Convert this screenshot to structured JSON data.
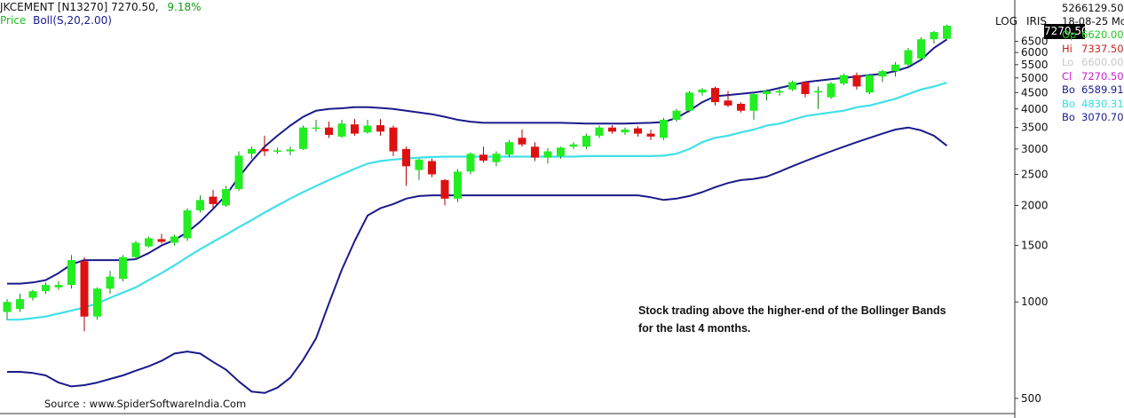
{
  "header": {
    "symbol": "JKCEMENT [N13270]",
    "last": "7270.50,",
    "change": "9.18%",
    "indicator_prefix": "Price",
    "indicator": "Boll(S,20,2.00)"
  },
  "toolbar": {
    "log_label": "LOG",
    "iris_label": "IRIS"
  },
  "info": {
    "volume": "5266129.50",
    "date": "18-08-25 Mo",
    "price_box": "7270.50",
    "rows": [
      {
        "key": "Op",
        "value": "6620.00",
        "color": "#22cc22"
      },
      {
        "key": "Hi",
        "value": "7337.50",
        "color": "#cc2222"
      },
      {
        "key": "Lo",
        "value": "6600.00",
        "color": "#c8c8c8"
      },
      {
        "key": "Cl",
        "value": "7270.50",
        "color": "#cc22cc"
      },
      {
        "key": "Bo",
        "value": "6589.91",
        "color": "#1a1a8c"
      },
      {
        "key": "Bo",
        "value": "4830.31",
        "color": "#33dddd"
      },
      {
        "key": "Bo",
        "value": "3070.70",
        "color": "#1a1a8c"
      }
    ]
  },
  "annotation": {
    "line1": "Stock trading above the higher-end of the Bollinger Bands",
    "line2": "for the last 4 months."
  },
  "source": "Source : www.SpiderSoftwareIndia.Com",
  "chart_data": {
    "type": "candlestick",
    "y_scale": "log",
    "ylim": [
      460,
      7800
    ],
    "y_ticks": [
      500,
      1000,
      1500,
      2000,
      2500,
      3000,
      3500,
      4000,
      4500,
      5000,
      5500,
      6000,
      6500
    ],
    "colors": {
      "up": "#22ee22",
      "down": "#dd1111",
      "upper_band": "#1a1a8c",
      "middle_band": "#40e0e8",
      "lower_band": "#1a1a8c"
    },
    "candles": [
      {
        "o": 930,
        "h": 1020,
        "l": 880,
        "c": 1000
      },
      {
        "o": 950,
        "h": 1060,
        "l": 930,
        "c": 1020
      },
      {
        "o": 1030,
        "h": 1090,
        "l": 1010,
        "c": 1080
      },
      {
        "o": 1080,
        "h": 1150,
        "l": 1060,
        "c": 1130
      },
      {
        "o": 1110,
        "h": 1160,
        "l": 1090,
        "c": 1130
      },
      {
        "o": 1130,
        "h": 1400,
        "l": 1100,
        "c": 1350
      },
      {
        "o": 1340,
        "h": 1380,
        "l": 810,
        "c": 900
      },
      {
        "o": 900,
        "h": 1110,
        "l": 880,
        "c": 1100
      },
      {
        "o": 1100,
        "h": 1250,
        "l": 1060,
        "c": 1200
      },
      {
        "o": 1180,
        "h": 1400,
        "l": 1160,
        "c": 1380
      },
      {
        "o": 1380,
        "h": 1550,
        "l": 1350,
        "c": 1530
      },
      {
        "o": 1490,
        "h": 1600,
        "l": 1480,
        "c": 1580
      },
      {
        "o": 1570,
        "h": 1630,
        "l": 1520,
        "c": 1540
      },
      {
        "o": 1530,
        "h": 1620,
        "l": 1500,
        "c": 1600
      },
      {
        "o": 1580,
        "h": 1960,
        "l": 1550,
        "c": 1930
      },
      {
        "o": 1930,
        "h": 2150,
        "l": 1900,
        "c": 2080
      },
      {
        "o": 2130,
        "h": 2240,
        "l": 1950,
        "c": 2020
      },
      {
        "o": 2000,
        "h": 2300,
        "l": 1980,
        "c": 2250
      },
      {
        "o": 2250,
        "h": 2950,
        "l": 2220,
        "c": 2860
      },
      {
        "o": 2900,
        "h": 3050,
        "l": 2800,
        "c": 3000
      },
      {
        "o": 3000,
        "h": 3300,
        "l": 2850,
        "c": 2950
      },
      {
        "o": 2950,
        "h": 3030,
        "l": 2900,
        "c": 2970
      },
      {
        "o": 2950,
        "h": 3050,
        "l": 2870,
        "c": 2990
      },
      {
        "o": 3000,
        "h": 3550,
        "l": 2980,
        "c": 3500
      },
      {
        "o": 3480,
        "h": 3700,
        "l": 3400,
        "c": 3500
      },
      {
        "o": 3500,
        "h": 3650,
        "l": 3250,
        "c": 3320
      },
      {
        "o": 3280,
        "h": 3700,
        "l": 3250,
        "c": 3600
      },
      {
        "o": 3580,
        "h": 3720,
        "l": 3300,
        "c": 3350
      },
      {
        "o": 3380,
        "h": 3700,
        "l": 3350,
        "c": 3550
      },
      {
        "o": 3560,
        "h": 3720,
        "l": 3300,
        "c": 3400
      },
      {
        "o": 3500,
        "h": 3550,
        "l": 2850,
        "c": 2950
      },
      {
        "o": 3000,
        "h": 3050,
        "l": 2300,
        "c": 2650
      },
      {
        "o": 2580,
        "h": 2800,
        "l": 2400,
        "c": 2780
      },
      {
        "o": 2750,
        "h": 2800,
        "l": 2450,
        "c": 2500
      },
      {
        "o": 2400,
        "h": 2420,
        "l": 2000,
        "c": 2100
      },
      {
        "o": 2100,
        "h": 2600,
        "l": 2050,
        "c": 2550
      },
      {
        "o": 2550,
        "h": 2930,
        "l": 2500,
        "c": 2900
      },
      {
        "o": 2880,
        "h": 3050,
        "l": 2720,
        "c": 2760
      },
      {
        "o": 2730,
        "h": 2950,
        "l": 2650,
        "c": 2900
      },
      {
        "o": 2880,
        "h": 3200,
        "l": 2830,
        "c": 3150
      },
      {
        "o": 3250,
        "h": 3450,
        "l": 3050,
        "c": 3100
      },
      {
        "o": 3050,
        "h": 3150,
        "l": 2750,
        "c": 2820
      },
      {
        "o": 2820,
        "h": 3020,
        "l": 2700,
        "c": 2950
      },
      {
        "o": 2850,
        "h": 3050,
        "l": 2800,
        "c": 3030
      },
      {
        "o": 3050,
        "h": 3150,
        "l": 3000,
        "c": 3100
      },
      {
        "o": 3050,
        "h": 3350,
        "l": 3000,
        "c": 3300
      },
      {
        "o": 3300,
        "h": 3550,
        "l": 3250,
        "c": 3500
      },
      {
        "o": 3500,
        "h": 3560,
        "l": 3350,
        "c": 3400
      },
      {
        "o": 3380,
        "h": 3500,
        "l": 3320,
        "c": 3450
      },
      {
        "o": 3480,
        "h": 3530,
        "l": 3280,
        "c": 3350
      },
      {
        "o": 3350,
        "h": 3450,
        "l": 3200,
        "c": 3280
      },
      {
        "o": 3250,
        "h": 3750,
        "l": 3200,
        "c": 3700
      },
      {
        "o": 3700,
        "h": 4000,
        "l": 3650,
        "c": 3950
      },
      {
        "o": 3950,
        "h": 4550,
        "l": 3900,
        "c": 4500
      },
      {
        "o": 4500,
        "h": 4650,
        "l": 4400,
        "c": 4600
      },
      {
        "o": 4650,
        "h": 4700,
        "l": 4100,
        "c": 4200
      },
      {
        "o": 4250,
        "h": 4550,
        "l": 4050,
        "c": 4100
      },
      {
        "o": 4150,
        "h": 4200,
        "l": 3900,
        "c": 3950
      },
      {
        "o": 3950,
        "h": 4500,
        "l": 3700,
        "c": 4450
      },
      {
        "o": 4450,
        "h": 4600,
        "l": 4250,
        "c": 4550
      },
      {
        "o": 4500,
        "h": 4700,
        "l": 4400,
        "c": 4550
      },
      {
        "o": 4600,
        "h": 4900,
        "l": 4550,
        "c": 4850
      },
      {
        "o": 4850,
        "h": 4880,
        "l": 4350,
        "c": 4450
      },
      {
        "o": 4500,
        "h": 4700,
        "l": 4000,
        "c": 4550
      },
      {
        "o": 4350,
        "h": 4850,
        "l": 4300,
        "c": 4800
      },
      {
        "o": 4800,
        "h": 5150,
        "l": 4750,
        "c": 5100
      },
      {
        "o": 5100,
        "h": 5200,
        "l": 4600,
        "c": 4700
      },
      {
        "o": 4500,
        "h": 5150,
        "l": 4450,
        "c": 5100
      },
      {
        "o": 5050,
        "h": 5300,
        "l": 4850,
        "c": 5250
      },
      {
        "o": 5250,
        "h": 5600,
        "l": 5050,
        "c": 5500
      },
      {
        "o": 5500,
        "h": 6200,
        "l": 5400,
        "c": 6100
      },
      {
        "o": 5750,
        "h": 6700,
        "l": 5700,
        "c": 6600
      },
      {
        "o": 6600,
        "h": 7000,
        "l": 6400,
        "c": 6950
      },
      {
        "o": 6620,
        "h": 7337.5,
        "l": 6600,
        "c": 7270.5
      }
    ],
    "bands": {
      "upper": [
        1140,
        1140,
        1150,
        1170,
        1230,
        1310,
        1350,
        1350,
        1350,
        1350,
        1360,
        1420,
        1500,
        1560,
        1650,
        1780,
        1950,
        2150,
        2450,
        2750,
        3050,
        3300,
        3550,
        3780,
        3950,
        4000,
        4020,
        4050,
        4050,
        4030,
        4000,
        3950,
        3900,
        3850,
        3780,
        3700,
        3650,
        3620,
        3620,
        3620,
        3620,
        3620,
        3620,
        3620,
        3610,
        3600,
        3600,
        3600,
        3600,
        3610,
        3620,
        3640,
        3750,
        3950,
        4200,
        4380,
        4420,
        4460,
        4500,
        4550,
        4650,
        4750,
        4850,
        4900,
        4950,
        5000,
        5050,
        5100,
        5150,
        5250,
        5400,
        5700,
        6200,
        6589.91
      ],
      "middle": [
        880,
        880,
        890,
        900,
        920,
        940,
        960,
        990,
        1030,
        1070,
        1110,
        1170,
        1230,
        1300,
        1380,
        1460,
        1540,
        1620,
        1710,
        1800,
        1900,
        2000,
        2100,
        2200,
        2300,
        2400,
        2500,
        2600,
        2700,
        2750,
        2780,
        2800,
        2820,
        2830,
        2840,
        2840,
        2840,
        2840,
        2840,
        2840,
        2840,
        2840,
        2840,
        2840,
        2840,
        2850,
        2850,
        2850,
        2850,
        2850,
        2850,
        2860,
        2900,
        3000,
        3150,
        3250,
        3300,
        3380,
        3450,
        3550,
        3600,
        3700,
        3800,
        3850,
        3900,
        3950,
        4050,
        4100,
        4200,
        4300,
        4450,
        4600,
        4700,
        4830.31
      ],
      "lower": [
        605,
        605,
        600,
        590,
        560,
        545,
        550,
        560,
        575,
        590,
        610,
        630,
        655,
        690,
        700,
        690,
        650,
        615,
        565,
        525,
        520,
        540,
        580,
        660,
        770,
        990,
        1260,
        1550,
        1860,
        1960,
        2020,
        2100,
        2140,
        2150,
        2150,
        2150,
        2150,
        2150,
        2150,
        2150,
        2150,
        2150,
        2150,
        2150,
        2150,
        2150,
        2150,
        2150,
        2150,
        2150,
        2120,
        2080,
        2100,
        2140,
        2200,
        2280,
        2350,
        2400,
        2420,
        2460,
        2550,
        2650,
        2750,
        2850,
        2950,
        3050,
        3150,
        3250,
        3350,
        3450,
        3500,
        3430,
        3300,
        3070.7
      ]
    }
  }
}
